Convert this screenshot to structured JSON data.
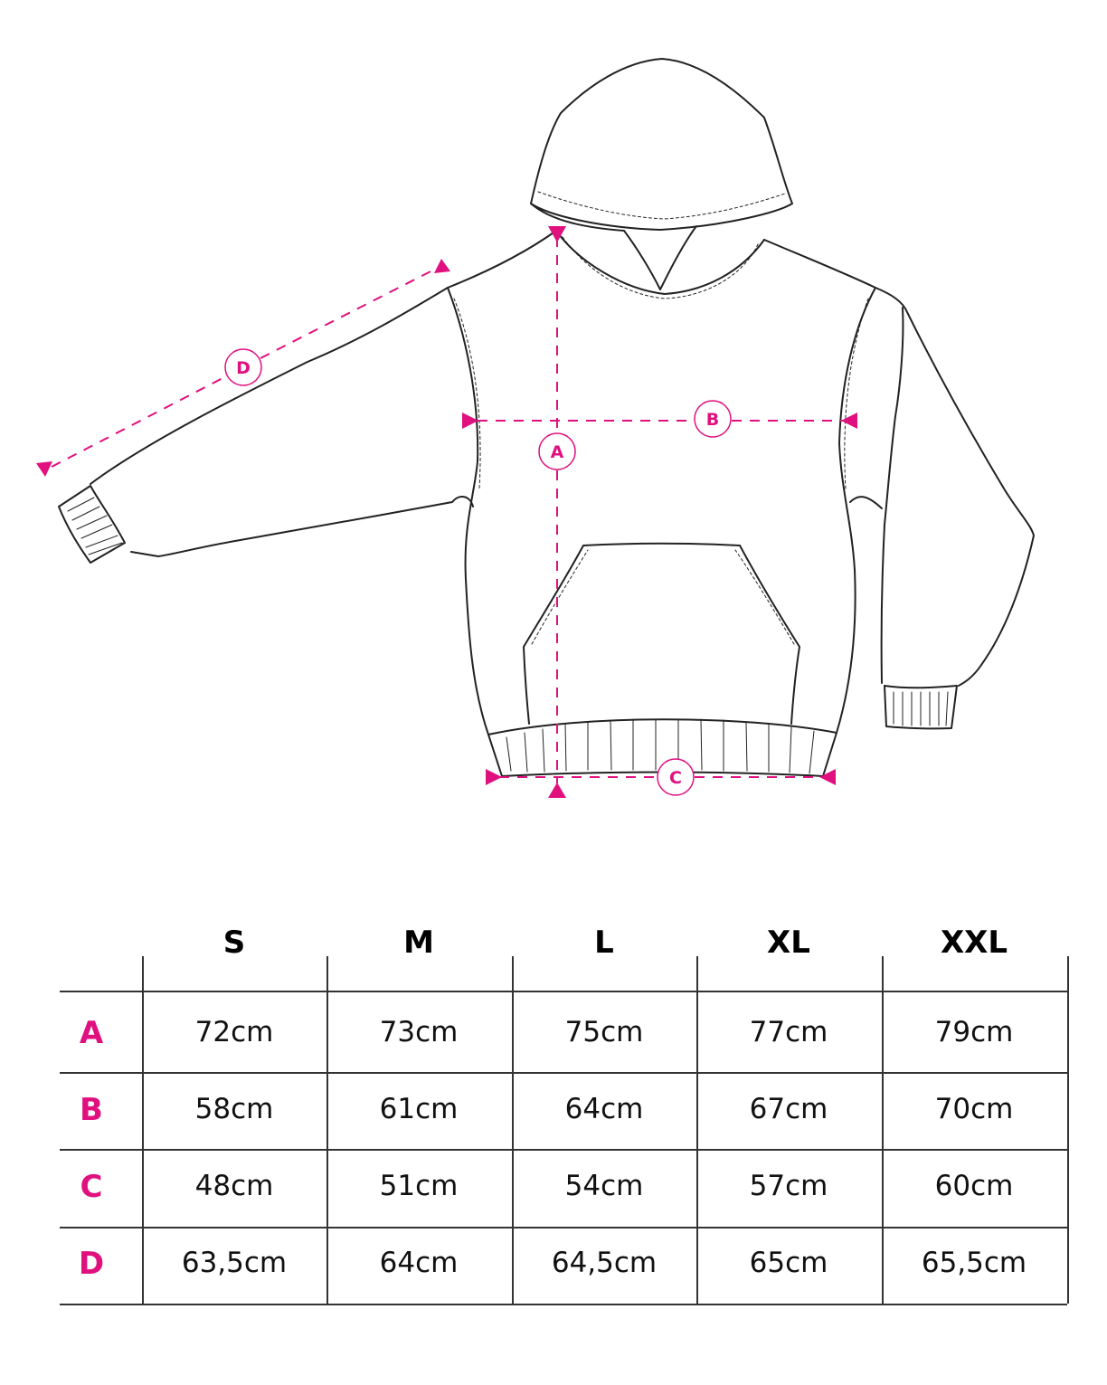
{
  "colors": {
    "accent": "#e0107f",
    "line": "#222222"
  },
  "diagram": {
    "labels": [
      "A",
      "B",
      "C",
      "D"
    ]
  },
  "table": {
    "sizes": [
      "S",
      "M",
      "L",
      "XL",
      "XXL"
    ],
    "rows": [
      {
        "label": "A",
        "values": [
          "72cm",
          "73cm",
          "75cm",
          "77cm",
          "79cm"
        ]
      },
      {
        "label": "B",
        "values": [
          "58cm",
          "61cm",
          "64cm",
          "67cm",
          "70cm"
        ]
      },
      {
        "label": "C",
        "values": [
          "48cm",
          "51cm",
          "54cm",
          "57cm",
          "60cm"
        ]
      },
      {
        "label": "D",
        "values": [
          "63,5cm",
          "64cm",
          "64,5cm",
          "65cm",
          "65,5cm"
        ]
      }
    ]
  }
}
